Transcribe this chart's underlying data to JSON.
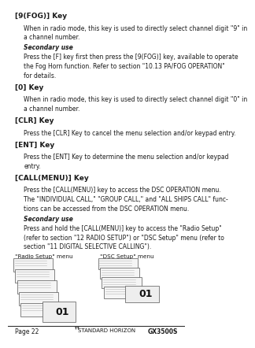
{
  "page_number": "Page 22",
  "product_name": "GX3500S",
  "brand": "STANDARD HORIZON",
  "background_color": "#ffffff",
  "text_color": "#1a1a1a",
  "sections": [
    {
      "heading": "[9(FOG)] Key",
      "body": "When in radio mode, this key is used to directly select channel digit \"9\" in\na channel number.",
      "secondary_use": true,
      "secondary_body": "Press the [F] key first then press the [9(FOG)] key, available to operate\nthe Fog Horn function. Refer to section \"10.13 PA/FOG OPERATION\"\nfor details."
    },
    {
      "heading": "[0] Key",
      "body": "When in radio mode, this key is used to directly select channel digit \"0\" in\na channel number.",
      "secondary_use": false
    },
    {
      "heading": "[CLR] Key",
      "body": "Press the [CLR] Key to cancel the menu selection and/or keypad entry.",
      "secondary_use": false
    },
    {
      "heading": "[ENT] Key",
      "body": "Press the [ENT] Key to determine the menu selection and/or keypad\nentry.",
      "secondary_use": false
    },
    {
      "heading": "[CALL(MENU)] Key",
      "body": "Press the [CALL(MENU)] key to access the DSC OPERATION menu.\nThe \"INDIVIDUAL CALL,\" \"GROUP CALL,\" and \"ALL SHIPS CALL\" func-\ntions can be accessed from the DSC OPERATION menu.",
      "secondary_use": true,
      "secondary_body": "Press and hold the [CALL(MENU)] key to access the \"Radio Setup\"\n(refer to section \"12 RADIO SETUP\") or \"DSC Setup\" menu (refer to\nsection \"11 DIGITAL SELECTIVE CALLING\")."
    }
  ],
  "caption_left": "\"Radio Setup\" menu",
  "caption_right": "\"DSC Setup\" menu"
}
